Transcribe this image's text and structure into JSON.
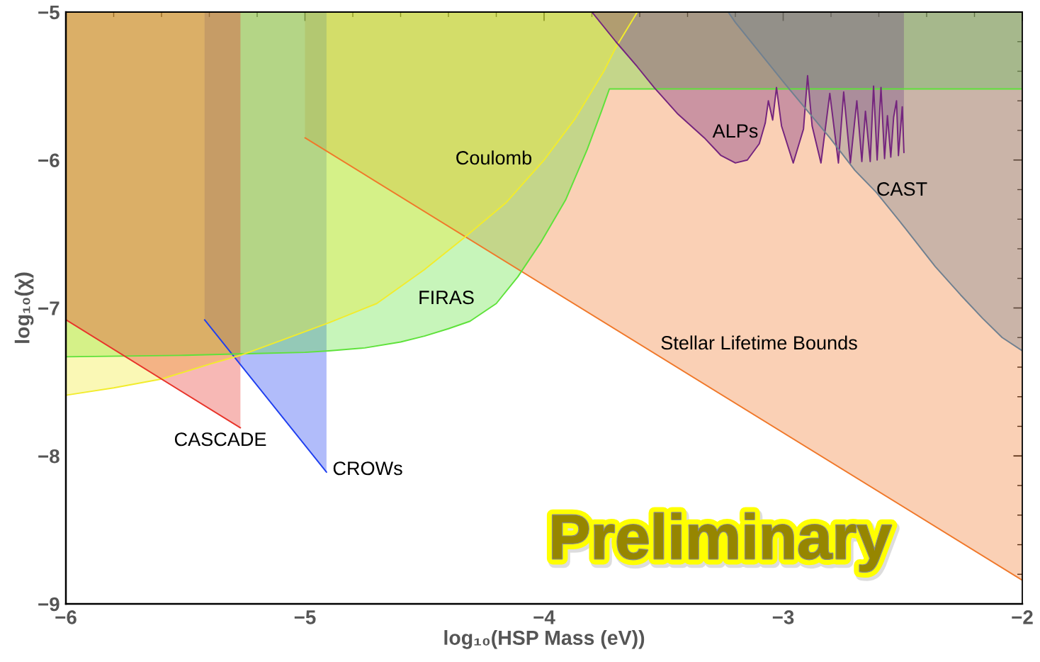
{
  "chart_data": {
    "type": "area",
    "xlabel": "log₁₀(HSP Mass (eV))",
    "ylabel": "log₁₀(χ)",
    "xlim": [
      -6,
      -2
    ],
    "ylim": [
      -9,
      -5
    ],
    "xticks": [
      -6,
      {
        "value": -5.8,
        "label": null
      },
      {
        "value": -5.6,
        "label": null
      },
      {
        "value": -5.4,
        "label": null
      },
      {
        "value": -5.2,
        "label": null
      },
      -5,
      {
        "value": -4.8,
        "label": null
      },
      {
        "value": -4.6,
        "label": null
      },
      {
        "value": -4.4,
        "label": null
      },
      {
        "value": -4.2,
        "label": null
      },
      -4,
      {
        "value": -3.8,
        "label": null
      },
      {
        "value": -3.6,
        "label": null
      },
      {
        "value": -3.4,
        "label": null
      },
      {
        "value": -3.2,
        "label": null
      },
      -3,
      {
        "value": -2.8,
        "label": null
      },
      {
        "value": -2.6,
        "label": null
      },
      {
        "value": -2.4,
        "label": null
      },
      {
        "value": -2.2,
        "label": null
      },
      -2
    ],
    "yticks": [
      -9,
      {
        "value": -8.8,
        "label": null
      },
      {
        "value": -8.6,
        "label": null
      },
      {
        "value": -8.4,
        "label": null
      },
      {
        "value": -8.2,
        "label": null
      },
      -8,
      {
        "value": -7.8,
        "label": null
      },
      {
        "value": -7.6,
        "label": null
      },
      {
        "value": -7.4,
        "label": null
      },
      {
        "value": -7.2,
        "label": null
      },
      -7,
      {
        "value": -6.8,
        "label": null
      },
      {
        "value": -6.6,
        "label": null
      },
      {
        "value": -6.4,
        "label": null
      },
      {
        "value": -6.2,
        "label": null
      },
      -6,
      {
        "value": -5.8,
        "label": null
      },
      {
        "value": -5.6,
        "label": null
      },
      {
        "value": -5.4,
        "label": null
      },
      {
        "value": -5.2,
        "label": null
      },
      -5
    ],
    "series": [
      {
        "name": "Stellar Lifetime Bounds",
        "color": "#f0782a",
        "x": [
          -5,
          -2
        ],
        "values": [
          -5.85,
          -8.84
        ]
      },
      {
        "name": "CROWs",
        "color": "#1f3ff0",
        "x": [
          -5.42,
          -4.91
        ],
        "values": [
          -7.08,
          -8.11
        ]
      },
      {
        "name": "FIRAS",
        "color": "#5ee23a",
        "x": [
          -6,
          -5.5,
          -5.27,
          -5.0,
          -4.9,
          -4.75,
          -4.6,
          -4.5,
          -4.4,
          -4.31,
          -4.2,
          -4.11,
          -4.015,
          -3.91,
          -3.82,
          -3.76,
          -3.727,
          -2
        ],
        "values": [
          -7.33,
          -7.32,
          -7.31,
          -7.3,
          -7.29,
          -7.27,
          -7.23,
          -7.19,
          -7.14,
          -7.09,
          -6.97,
          -6.79,
          -6.56,
          -6.27,
          -5.93,
          -5.67,
          -5.52,
          -5.52
        ]
      },
      {
        "name": "Coulomb",
        "color": "#f2ec2c",
        "x": [
          -6,
          -5.8,
          -5.6,
          -5.4,
          -5.27,
          -5.1,
          -5.0,
          -4.9,
          -4.7,
          -4.5,
          -4.33,
          -4.16,
          -4.0,
          -3.87,
          -3.75,
          -3.7,
          -3.61
        ],
        "values": [
          -7.59,
          -7.54,
          -7.48,
          -7.38,
          -7.32,
          -7.22,
          -7.16,
          -7.1,
          -6.97,
          -6.74,
          -6.52,
          -6.29,
          -6.0,
          -5.72,
          -5.4,
          -5.24,
          -5.0
        ]
      },
      {
        "name": "CASCADE",
        "color": "#e8342a",
        "x": [
          -6,
          -5.27
        ],
        "values": [
          -7.08,
          -7.81
        ]
      },
      {
        "name": "ALPs",
        "color": "#74247e",
        "x": [
          -3.8,
          -3.7,
          -3.61,
          -3.54,
          -3.44,
          -3.33,
          -3.26,
          -3.2,
          -3.15,
          -3.1,
          -3.075,
          -3.062,
          -3.044,
          -3.028,
          -3.007,
          -2.958,
          -2.915,
          -2.898,
          -2.879,
          -2.842,
          -2.805,
          -2.769,
          -2.747,
          -2.719,
          -2.692,
          -2.671,
          -2.656,
          -2.636,
          -2.622,
          -2.607,
          -2.591,
          -2.576,
          -2.564,
          -2.55,
          -2.538,
          -2.526,
          -2.518,
          -2.502,
          -2.495
        ],
        "values": [
          -5.0,
          -5.2,
          -5.37,
          -5.51,
          -5.69,
          -5.85,
          -5.97,
          -6.02,
          -6.0,
          -5.89,
          -5.75,
          -5.6,
          -5.73,
          -5.51,
          -5.77,
          -6.02,
          -5.79,
          -5.43,
          -5.77,
          -6.02,
          -5.55,
          -6.02,
          -5.54,
          -6.02,
          -5.6,
          -6.01,
          -5.67,
          -6.01,
          -5.5,
          -6.0,
          -5.51,
          -5.99,
          -5.7,
          -5.98,
          -5.71,
          -5.6,
          -5.97,
          -5.64,
          -5.95
        ]
      },
      {
        "name": "CAST",
        "color": "#708090",
        "x": [
          -3.23,
          -3.2,
          -2.99,
          -2.805,
          -2.7,
          -2.61,
          -2.49,
          -2.364,
          -2.259,
          -2.166,
          -2.084,
          -2.0
        ],
        "values": [
          -5.0,
          -5.07,
          -5.49,
          -5.85,
          -6.07,
          -6.22,
          -6.46,
          -6.72,
          -6.91,
          -7.07,
          -7.2,
          -7.29
        ]
      }
    ],
    "annotations": [
      "Preliminary"
    ]
  }
}
